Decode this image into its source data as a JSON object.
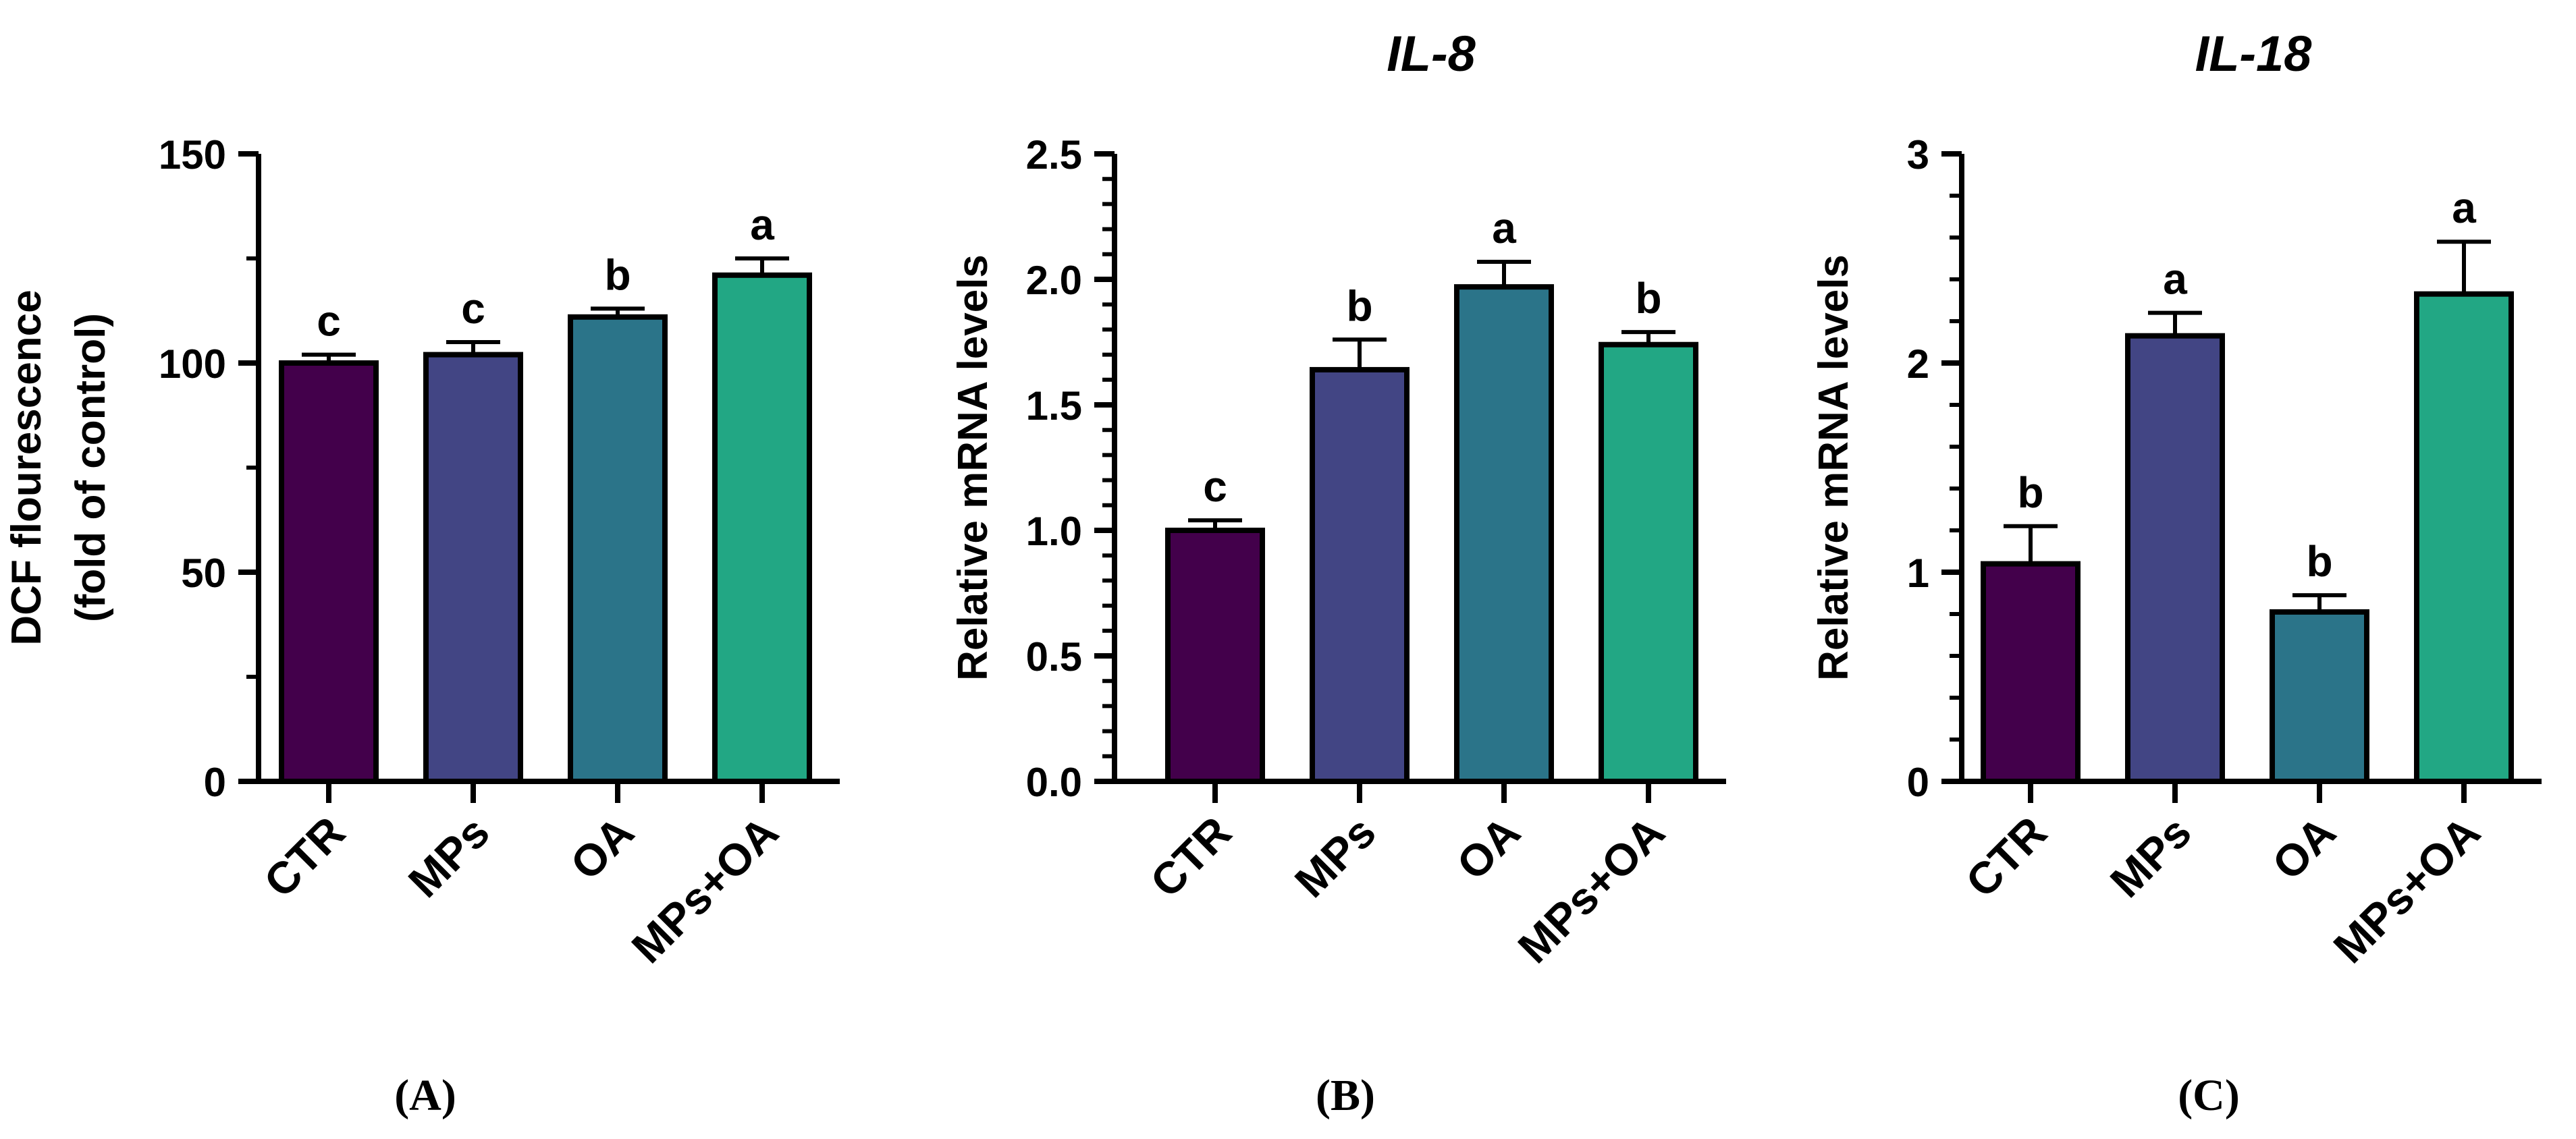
{
  "colors": {
    "CTR": "#43004b",
    "MPs": "#424584",
    "OA": "#2b7489",
    "MPs+OA": "#22a784",
    "axis": "#000000"
  },
  "chart_data": [
    {
      "type": "bar",
      "panel_label": "(A)",
      "title": "",
      "ylabel_lines": [
        "DCF flourescence",
        "(fold of control)"
      ],
      "xlabel": "",
      "categories": [
        "CTR",
        "MPs",
        "OA",
        "MPs+OA"
      ],
      "values": [
        100,
        102,
        111,
        121
      ],
      "errors": [
        2,
        3,
        2,
        4
      ],
      "letters": [
        "c",
        "c",
        "b",
        "a"
      ],
      "ylim": [
        0,
        150
      ],
      "yticks": [
        0,
        50,
        100,
        150
      ],
      "ytick_labels": [
        "0",
        "50",
        "100",
        "150"
      ],
      "minor_per_major": 1
    },
    {
      "type": "bar",
      "panel_label": "(B)",
      "title": "IL-8",
      "ylabel_lines": [
        "Relative mRNA levels"
      ],
      "xlabel": "",
      "categories": [
        "CTR",
        "MPs",
        "OA",
        "MPs+OA"
      ],
      "values": [
        1.0,
        1.64,
        1.97,
        1.74
      ],
      "errors": [
        0.04,
        0.12,
        0.1,
        0.05
      ],
      "letters": [
        "c",
        "b",
        "a",
        "b"
      ],
      "ylim": [
        0,
        2.5
      ],
      "yticks": [
        0,
        0.5,
        1.0,
        1.5,
        2.0,
        2.5
      ],
      "ytick_labels": [
        "0.0",
        "0.5",
        "1.0",
        "1.5",
        "2.0",
        "2.5"
      ],
      "minor_per_major": 4
    },
    {
      "type": "bar",
      "panel_label": "(C)",
      "title": "IL-18",
      "ylabel_lines": [
        "Relative mRNA levels"
      ],
      "xlabel": "",
      "categories": [
        "CTR",
        "MPs",
        "OA",
        "MPs+OA"
      ],
      "values": [
        1.04,
        2.13,
        0.81,
        2.33
      ],
      "errors": [
        0.18,
        0.11,
        0.08,
        0.25
      ],
      "letters": [
        "b",
        "a",
        "b",
        "a"
      ],
      "ylim": [
        0,
        3
      ],
      "yticks": [
        0,
        1,
        2,
        3
      ],
      "ytick_labels": [
        "0",
        "1",
        "2",
        "3"
      ],
      "minor_per_major": 4
    }
  ]
}
